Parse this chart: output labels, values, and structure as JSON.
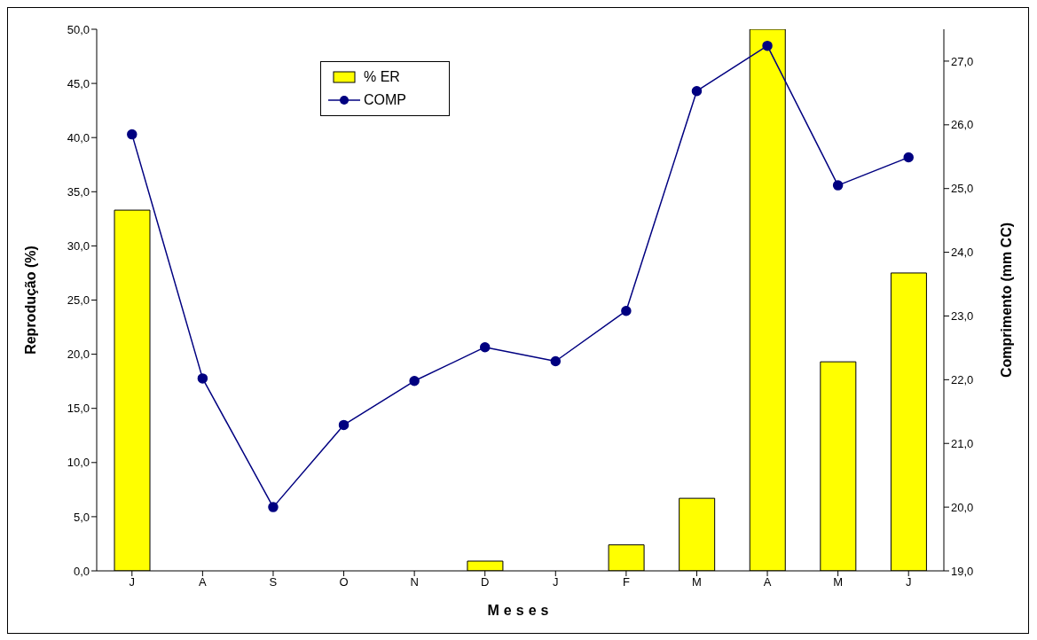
{
  "chart_data": {
    "type": "bar",
    "xlabel": "Meses",
    "ylabel": "Reprodução (%)",
    "y2label": "Comprimento (mm CC)",
    "categories": [
      "J",
      "A",
      "S",
      "O",
      "N",
      "D",
      "J",
      "F",
      "M",
      "A",
      "M",
      "J"
    ],
    "series": [
      {
        "name": "% ER",
        "color": "#ffff00",
        "values": [
          33.3,
          0,
          0,
          0,
          0,
          0.9,
          0,
          2.4,
          6.7,
          50,
          19.3,
          27.5
        ]
      },
      {
        "name": "COMP",
        "type": "line",
        "axis": "y2",
        "color": "#000080",
        "values": [
          25.85,
          22.02,
          20.0,
          21.29,
          21.98,
          22.51,
          22.29,
          23.08,
          26.53,
          27.24,
          25.05,
          25.49
        ]
      }
    ],
    "ylim": [
      0,
      50
    ],
    "yticks": [
      {
        "value": 0,
        "label": "0,0"
      },
      {
        "value": 5,
        "label": "5,0"
      },
      {
        "value": 10,
        "label": "10,0"
      },
      {
        "value": 15,
        "label": "15,0"
      },
      {
        "value": 20,
        "label": "20,0"
      },
      {
        "value": 25,
        "label": "25,0"
      },
      {
        "value": 30,
        "label": "30,0"
      },
      {
        "value": 35,
        "label": "35,0"
      },
      {
        "value": 40,
        "label": "40,0"
      },
      {
        "value": 45,
        "label": "45,0"
      },
      {
        "value": 50,
        "label": "50,0"
      }
    ],
    "y2lim": [
      19,
      27.5
    ],
    "y2ticks": [
      {
        "value": 19,
        "label": "19,0"
      },
      {
        "value": 20,
        "label": "20,0"
      },
      {
        "value": 21,
        "label": "21,0"
      },
      {
        "value": 22,
        "label": "22,0"
      },
      {
        "value": 23,
        "label": "23,0"
      },
      {
        "value": 24,
        "label": "24,0"
      },
      {
        "value": 25,
        "label": "25,0"
      },
      {
        "value": 26,
        "label": "26,0"
      },
      {
        "value": 27,
        "label": "27,0"
      }
    ],
    "legend": "top left",
    "marker": "circle",
    "line_style": "solid",
    "grid": false
  }
}
